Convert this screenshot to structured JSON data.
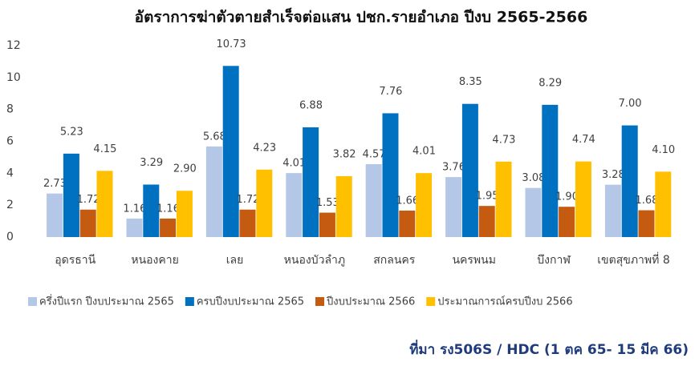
{
  "chart_data": {
    "type": "bar",
    "title": "อัตราการฆ่าตัวตายสำเร็จต่อแสน ปชก.รายอำเภอ ปีงบ 2565-2566",
    "categories": [
      "อุดรธานี",
      "หนองคาย",
      "เลย",
      "หนองบัวลำภู",
      "สกลนคร",
      "นครพนม",
      "บึงกาฬ",
      "เขตสุขภาพที่ 8"
    ],
    "series": [
      {
        "name": "ครึ่งปีแรก ปีงบประมาณ 2565",
        "color": "#b4c7e7",
        "values": [
          2.73,
          1.16,
          5.68,
          4.01,
          4.57,
          3.76,
          3.08,
          3.28
        ],
        "value_labels": [
          "2.73",
          "1.16",
          "5.68",
          "4.01",
          "4.57",
          "3.76",
          "3.08",
          "3.28"
        ]
      },
      {
        "name": "ครบปีงบประมาณ 2565",
        "color": "#0070c0",
        "values": [
          5.23,
          3.29,
          10.73,
          6.88,
          7.76,
          8.35,
          8.29,
          7.0
        ],
        "value_labels": [
          "5.23",
          "3.29",
          "10.73",
          "6.88",
          "7.76",
          "8.35",
          "8.29",
          "7.00"
        ]
      },
      {
        "name": "ปีงบประมาณ 2566",
        "color": "#c55a11",
        "values": [
          1.72,
          1.16,
          1.72,
          1.53,
          1.66,
          1.95,
          1.9,
          1.68
        ],
        "value_labels": [
          "1.72",
          "1.16",
          "1.72",
          "1.53",
          "1.66",
          "1.95",
          "1.90",
          "1.68"
        ]
      },
      {
        "name": "ประมาณการณ์ครบปีงบ 2566",
        "color": "#ffc000",
        "values": [
          4.15,
          2.9,
          4.23,
          3.82,
          4.01,
          4.73,
          4.74,
          4.1
        ],
        "value_labels": [
          "4.15",
          "2.90",
          "4.23",
          "3.82",
          "4.01",
          "4.73",
          "4.74",
          "4.10"
        ]
      }
    ],
    "ylim": [
      0,
      12
    ],
    "yticks": [
      0,
      2,
      4,
      6,
      8,
      10,
      12
    ],
    "grid": false,
    "source": "ที่มา รง506S / HDC (1 ตค 65- 15 มีค 66)"
  }
}
